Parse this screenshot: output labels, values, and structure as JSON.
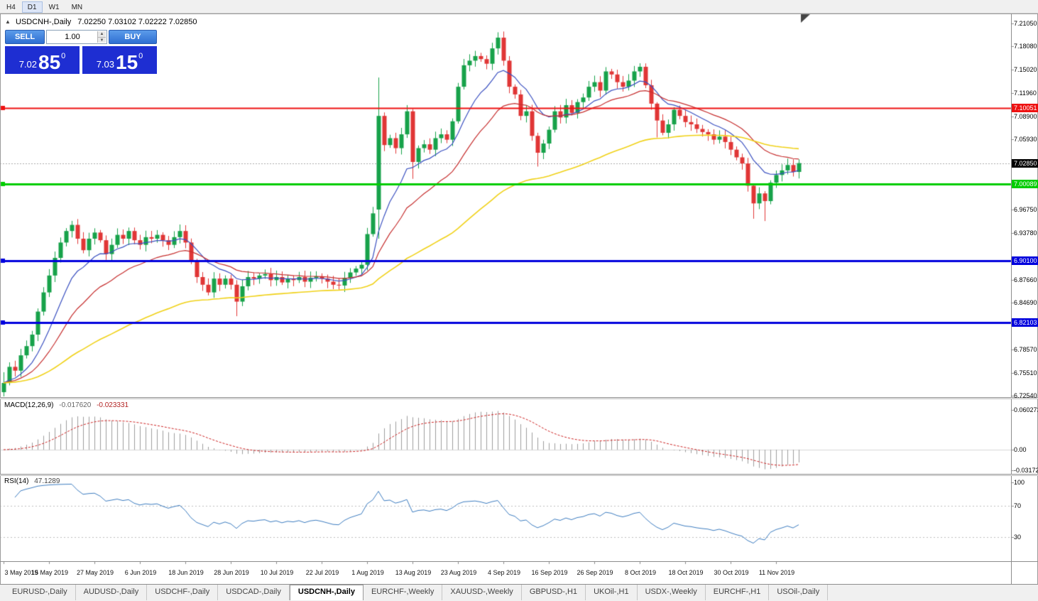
{
  "toolbar": {
    "periods": [
      "H4",
      "D1",
      "W1",
      "MN"
    ],
    "active": "D1"
  },
  "chart": {
    "title": {
      "symbol": "USDCNH-,Daily",
      "ohlc": "7.02250 7.03102 7.02222 7.02850"
    },
    "one_click": {
      "sell_label": "SELL",
      "buy_label": "BUY",
      "volume": "1.00",
      "sell_price": {
        "prefix": "7.02",
        "big": "85",
        "sup": "0"
      },
      "buy_price": {
        "prefix": "7.03",
        "big": "15",
        "sup": "0"
      }
    },
    "current_price": "7.02850",
    "hlines": [
      {
        "label": "7.10051",
        "value": 7.10051,
        "color": "#ee1111",
        "width": 2
      },
      {
        "label": "7.00089",
        "value": 7.00089,
        "color": "#00cc00",
        "width": 3
      },
      {
        "label": "6.90100",
        "value": 6.901,
        "color": "#0000dd",
        "width": 3
      },
      {
        "label": "6.82103",
        "value": 6.82103,
        "color": "#0000dd",
        "width": 3
      }
    ],
    "axis_ticks": [
      "7.21050",
      "7.18080",
      "7.15020",
      "7.11960",
      "7.08900",
      "7.05930",
      "6.96750",
      "6.93780",
      "6.87660",
      "6.84690",
      "6.78570",
      "6.75510",
      "6.72540"
    ],
    "date_labels": [
      {
        "text": "3 May 2019",
        "bar": 0
      },
      {
        "text": "15 May 2019",
        "bar": 8
      },
      {
        "text": "27 May 2019",
        "bar": 16
      },
      {
        "text": "6 Jun 2019",
        "bar": 24
      },
      {
        "text": "18 Jun 2019",
        "bar": 32
      },
      {
        "text": "28 Jun 2019",
        "bar": 40
      },
      {
        "text": "10 Jul 2019",
        "bar": 48
      },
      {
        "text": "22 Jul 2019",
        "bar": 56
      },
      {
        "text": "1 Aug 2019",
        "bar": 64
      },
      {
        "text": "13 Aug 2019",
        "bar": 72
      },
      {
        "text": "23 Aug 2019",
        "bar": 80
      },
      {
        "text": "4 Sep 2019",
        "bar": 88
      },
      {
        "text": "16 Sep 2019",
        "bar": 96
      },
      {
        "text": "26 Sep 2019",
        "bar": 104
      },
      {
        "text": "8 Oct 2019",
        "bar": 112
      },
      {
        "text": "18 Oct 2019",
        "bar": 120
      },
      {
        "text": "30 Oct 2019",
        "bar": 128
      },
      {
        "text": "11 Nov 2019",
        "bar": 136
      }
    ]
  },
  "macd": {
    "name": "MACD(12,26,9)",
    "value1": "-0.017620",
    "value2": "-0.023331",
    "params": {
      "fast": 12,
      "slow": 26,
      "signal": 9
    },
    "axis": [
      {
        "text": "0.060273",
        "value": 0.060273
      },
      {
        "text": "0.00",
        "value": 0
      },
      {
        "text": "-0.031725",
        "value": -0.031725
      }
    ]
  },
  "rsi": {
    "name": "RSI(14)",
    "value": "47.1289",
    "period": 14,
    "levels": [
      70,
      30
    ],
    "axis": [
      {
        "text": "100",
        "value": 100
      },
      {
        "text": "70",
        "value": 70
      },
      {
        "text": "30",
        "value": 30
      }
    ]
  },
  "tabs": {
    "items": [
      "EURUSD-,Daily",
      "AUDUSD-,Daily",
      "USDCHF-,Daily",
      "USDCAD-,Daily",
      "USDCNH-,Daily",
      "EURCHF-,Weekly",
      "XAUUSD-,Weekly",
      "GBPUSD-,H1",
      "UKOil-,H1",
      "USDX-,Weekly",
      "EURCHF-,H1",
      "USOil-,Daily"
    ],
    "active_index": 4
  },
  "colors": {
    "candle_up": "#17a24a",
    "candle_down": "#e03636",
    "macd_hist": "#9c9c9c",
    "macd_signal": "#cc2222",
    "rsi_line": "#3b7bbf",
    "current_price_bg": "#000000",
    "accent_blue": "#1e2ed2"
  },
  "chart_data": {
    "type": "candlestick",
    "symbol": "USDCNH",
    "timeframe": "Daily",
    "price_axis_range": [
      6.7254,
      7.2105
    ],
    "closes": [
      6.742,
      6.763,
      6.758,
      6.778,
      6.79,
      6.805,
      6.835,
      6.86,
      6.882,
      6.905,
      6.925,
      6.94,
      6.948,
      6.93,
      6.915,
      6.93,
      6.938,
      6.928,
      6.91,
      6.922,
      6.935,
      6.93,
      6.94,
      6.928,
      6.922,
      6.932,
      6.93,
      6.935,
      6.928,
      6.922,
      6.932,
      6.94,
      6.925,
      6.9,
      6.88,
      6.87,
      6.86,
      6.878,
      6.87,
      6.878,
      6.87,
      6.848,
      6.868,
      6.88,
      6.878,
      6.882,
      6.884,
      6.876,
      6.88,
      6.873,
      6.878,
      6.876,
      6.88,
      6.874,
      6.879,
      6.881,
      6.878,
      6.874,
      6.87,
      6.869,
      6.879,
      6.886,
      6.891,
      6.896,
      6.936,
      6.963,
      7.09,
      7.052,
      7.061,
      7.048,
      7.066,
      7.096,
      7.03,
      7.048,
      7.053,
      7.046,
      7.061,
      7.066,
      7.059,
      7.083,
      7.128,
      7.156,
      7.162,
      7.168,
      7.164,
      7.158,
      7.178,
      7.192,
      7.162,
      7.128,
      7.118,
      7.09,
      7.096,
      7.064,
      7.042,
      7.054,
      7.072,
      7.096,
      7.088,
      7.104,
      7.094,
      7.108,
      7.114,
      7.128,
      7.134,
      7.123,
      7.148,
      7.144,
      7.134,
      7.128,
      7.136,
      7.148,
      7.154,
      7.13,
      7.106,
      7.084,
      7.068,
      7.079,
      7.098,
      7.09,
      7.082,
      7.079,
      7.073,
      7.069,
      7.066,
      7.059,
      7.063,
      7.056,
      7.046,
      7.036,
      7.028,
      6.999,
      6.976,
      6.989,
      6.979,
      7.003,
      7.013,
      7.019,
      7.026,
      7.017,
      7.0285
    ],
    "overrides": {
      "0": [
        6.73,
        6.756,
        6.721,
        6.742
      ],
      "41": [
        6.87,
        6.876,
        6.829,
        6.848
      ],
      "66": [
        6.968,
        7.14,
        6.93,
        7.09
      ],
      "72": [
        7.096,
        7.099,
        7.008,
        7.03
      ],
      "80": [
        7.083,
        7.133,
        7.08,
        7.128
      ],
      "87": [
        7.178,
        7.199,
        7.17,
        7.192
      ],
      "94": [
        7.064,
        7.068,
        7.024,
        7.042
      ],
      "115": [
        7.106,
        7.108,
        7.062,
        7.084
      ],
      "132": [
        6.999,
        7.001,
        6.956,
        6.976
      ],
      "134": [
        6.989,
        6.992,
        6.953,
        6.979
      ]
    },
    "moving_averages": [
      {
        "period": 10,
        "color": "#3a50c0",
        "width": 1.2
      },
      {
        "period": 21,
        "color": "#c62f2f",
        "width": 1.2
      },
      {
        "period": 65,
        "color": "#f0d117",
        "width": 1.6
      }
    ]
  }
}
